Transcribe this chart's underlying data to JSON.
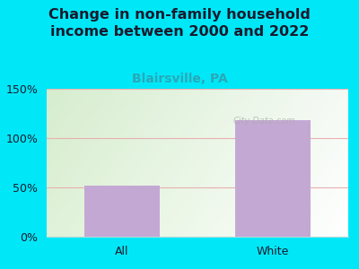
{
  "title": "Change in non-family household\nincome between 2000 and 2022",
  "subtitle": "Blairsville, PA",
  "categories": [
    "All",
    "White"
  ],
  "values": [
    52,
    118
  ],
  "bar_color": "#c4a8d4",
  "title_color": "#1a1a2e",
  "subtitle_color": "#2aa8b8",
  "background_outer": "#00e8f8",
  "background_inner_left": "#e8f5e0",
  "background_inner_right": "#f8fbf4",
  "ylim": [
    0,
    150
  ],
  "yticks": [
    0,
    50,
    100,
    150
  ],
  "ytick_labels": [
    "0%",
    "50%",
    "100%",
    "150%"
  ],
  "grid_color": "#e8b0b0",
  "title_fontsize": 11.5,
  "subtitle_fontsize": 10,
  "tick_fontsize": 9,
  "watermark": "City-Data.com"
}
